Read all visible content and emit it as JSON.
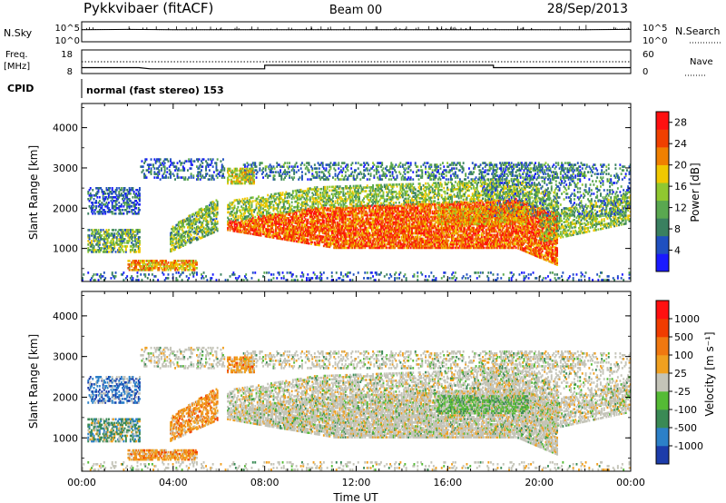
{
  "header": {
    "station": "Pykkvibaer (fitACF)",
    "beam": "Beam 00",
    "date": "28/Sep/2013"
  },
  "noise_panel": {
    "left_label": "N.Sky",
    "left_ticks": [
      "10^5",
      "10^0"
    ],
    "right_label": "N.Search",
    "right_ticks": [
      "10^5",
      "10^0"
    ]
  },
  "freq_panel": {
    "left_label_1": "Freq.",
    "left_label_2": "[MHz]",
    "left_ticks": [
      "18",
      "8"
    ],
    "right_label": "Nave",
    "right_ticks": [
      "60",
      "0"
    ]
  },
  "cpid": {
    "label": "CPID",
    "text": "normal (fast stereo) 153"
  },
  "chart_data": [
    {
      "type": "line",
      "name": "noise",
      "x": [
        "00:00",
        "02:00",
        "04:00",
        "06:00",
        "08:00",
        "10:00",
        "12:00",
        "14:00",
        "16:00",
        "18:00",
        "20:00",
        "22:00",
        "24:00"
      ],
      "series": [
        {
          "values": [
            3.0,
            3.1,
            3.0,
            3.0,
            3.0,
            3.0,
            3.0,
            3.0,
            3.0,
            3.0,
            3.0,
            3.0,
            3.1
          ]
        },
        {
          "values": [
            3.1,
            3.1,
            3.0,
            3.0,
            3.0,
            3.0,
            3.0,
            3.0,
            3.0,
            3.0,
            3.0,
            3.0,
            3.2
          ]
        }
      ]
    },
    {
      "type": "line",
      "name": "frequency-nave",
      "x": [
        "00:00",
        "02:30",
        "03:00",
        "08:00",
        "18:00",
        "24:00"
      ],
      "series": [
        {
          "values": [
            10.5,
            10.5,
            10.0,
            11.5,
            10.5,
            10.5
          ]
        },
        {
          "values": [
            13.0,
            13.0,
            13.0,
            13.0,
            13.0,
            13.0
          ]
        }
      ]
    },
    {
      "type": "heatmap",
      "name": "power",
      "ylabel": "Slant Range [km]",
      "ylim": [
        180,
        4600
      ],
      "yticks": [
        "1000",
        "2000",
        "3000",
        "4000"
      ],
      "colorbar": {
        "label": "Power [dB]",
        "ticks": [
          "4",
          "8",
          "12",
          "16",
          "20",
          "24",
          "28"
        ],
        "range": [
          0,
          30
        ],
        "colors": [
          "#1a1aff",
          "#2050c0",
          "#3a8060",
          "#5aa850",
          "#90c830",
          "#f0c800",
          "#f08000",
          "#f04000",
          "#ff1010"
        ]
      }
    },
    {
      "type": "heatmap",
      "name": "velocity",
      "ylabel": "Slant Range [km]",
      "ylim": [
        180,
        4600
      ],
      "yticks": [
        "1000",
        "2000",
        "3000",
        "4000"
      ],
      "xticks": [
        "00:00",
        "04:00",
        "08:00",
        "12:00",
        "16:00",
        "20:00",
        "00:00"
      ],
      "xlabel": "Time UT",
      "colorbar": {
        "label": "Velocity [m s⁻¹]",
        "ticks": [
          "1000",
          "500",
          "100",
          "25",
          "-25",
          "-100",
          "-500",
          "-1000"
        ],
        "colors": [
          "#1c3caa",
          "#2c80c8",
          "#3a8a55",
          "#55bb35",
          "#c4c4b8",
          "#f0a020",
          "#f07810",
          "#f03c00",
          "#ff1010"
        ]
      }
    }
  ]
}
